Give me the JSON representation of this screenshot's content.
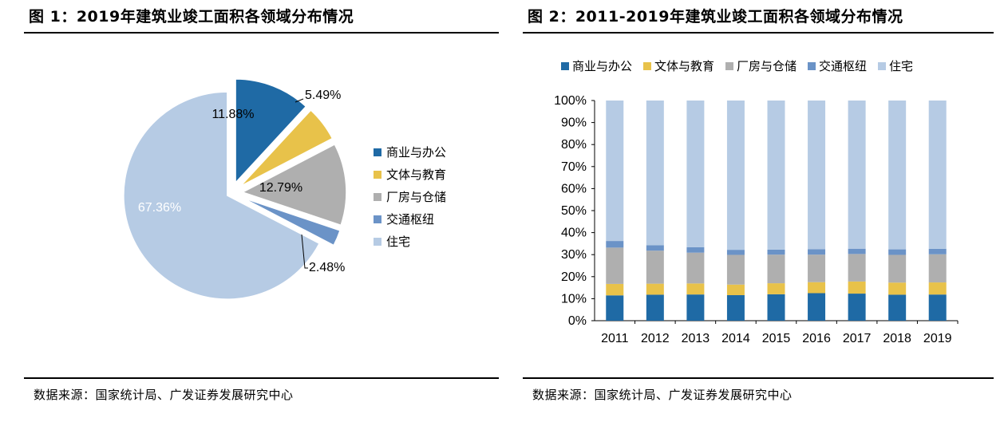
{
  "left": {
    "title": "图 1：2019年建筑业竣工面积各领域分布情况",
    "source": "数据来源：国家统计局、广发证券发展研究中心"
  },
  "right": {
    "title": "图 2：2011-2019年建筑业竣工面积各领域分布情况",
    "source": "数据来源：国家统计局、广发证券发展研究中心"
  },
  "colors": {
    "商业与办公": "#1f6aa5",
    "文体与教育": "#e8c24a",
    "厂房与仓储": "#afafaf",
    "交通枢纽": "#6b93c7",
    "住宅": "#b6cbe4"
  },
  "chart_data": [
    {
      "type": "pie",
      "title": "图 1：2019年建筑业竣工面积各领域分布情况",
      "labels": [
        "商业与办公",
        "文体与教育",
        "厂房与仓储",
        "交通枢纽",
        "住宅"
      ],
      "values": [
        11.88,
        5.49,
        12.79,
        2.48,
        67.36
      ],
      "value_labels": [
        "11.88%",
        "5.49%",
        "12.79%",
        "2.48%",
        "67.36%"
      ],
      "legend_position": "right"
    },
    {
      "type": "bar",
      "stacked": true,
      "title": "图 2：2011-2019年建筑业竣工面积各领域分布情况",
      "categories": [
        "2011",
        "2012",
        "2013",
        "2014",
        "2015",
        "2016",
        "2017",
        "2018",
        "2019"
      ],
      "series": [
        {
          "name": "商业与办公",
          "values": [
            11.5,
            11.8,
            11.9,
            11.6,
            12.0,
            12.5,
            12.3,
            11.8,
            11.88
          ]
        },
        {
          "name": "文体与教育",
          "values": [
            5.2,
            5.0,
            5.0,
            4.8,
            5.0,
            5.0,
            5.5,
            5.5,
            5.49
          ]
        },
        {
          "name": "厂房与仓储",
          "values": [
            16.5,
            15.0,
            14.0,
            13.5,
            13.0,
            12.5,
            12.5,
            12.6,
            12.79
          ]
        },
        {
          "name": "交通枢纽",
          "values": [
            3.0,
            2.5,
            2.5,
            2.3,
            2.3,
            2.5,
            2.4,
            2.5,
            2.48
          ]
        },
        {
          "name": "住宅",
          "values": [
            63.8,
            65.7,
            66.6,
            67.8,
            67.7,
            67.5,
            67.3,
            67.6,
            67.36
          ]
        }
      ],
      "ylim": [
        0,
        100
      ],
      "yticks": [
        "0%",
        "10%",
        "20%",
        "30%",
        "40%",
        "50%",
        "60%",
        "70%",
        "80%",
        "90%",
        "100%"
      ],
      "grid": false,
      "legend_position": "top"
    }
  ]
}
